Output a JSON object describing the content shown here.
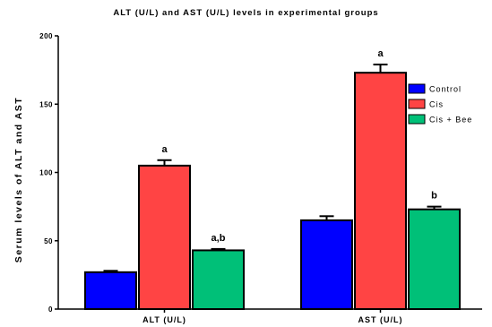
{
  "chart_data": {
    "type": "bar",
    "title": "ALT (U/L) and AST (U/L) levels in experimental groups",
    "xlabel": "",
    "ylabel": "Serum levels of ALT and AST",
    "ylim": [
      0,
      200
    ],
    "yticks": [
      0,
      50,
      100,
      150,
      200
    ],
    "categories": [
      "ALT (U/L)",
      "AST (U/L)"
    ],
    "series": [
      {
        "name": "Control",
        "color": "#0000ff",
        "values": [
          27,
          65
        ],
        "errors": [
          1,
          3
        ]
      },
      {
        "name": "Cis",
        "color": "#ff4444",
        "values": [
          105,
          173
        ],
        "errors": [
          4,
          6
        ]
      },
      {
        "name": "Cis + Bee",
        "color": "#00c078",
        "values": [
          43,
          73
        ],
        "errors": [
          1,
          2
        ]
      }
    ],
    "annotations": [
      {
        "category": "ALT (U/L)",
        "series": "Cis",
        "text": "a"
      },
      {
        "category": "ALT (U/L)",
        "series": "Cis + Bee",
        "text": "a,b"
      },
      {
        "category": "AST (U/L)",
        "series": "Cis",
        "text": "a"
      },
      {
        "category": "AST (U/L)",
        "series": "Cis + Bee",
        "text": "b"
      }
    ],
    "legend_position": "top-right",
    "grid": false
  }
}
